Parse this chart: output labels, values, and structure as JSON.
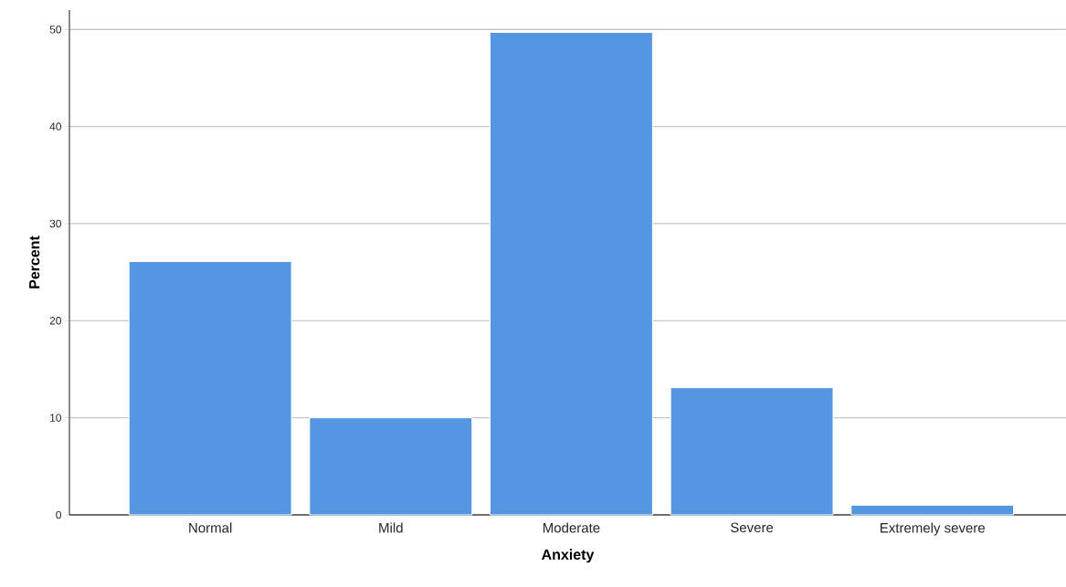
{
  "chart_data": {
    "type": "bar",
    "xlabel": "Anxiety",
    "ylabel": "Percent",
    "categories": [
      "Normal",
      "Mild",
      "Moderate",
      "Severe",
      "Extremely severe"
    ],
    "values": [
      26.1,
      10.0,
      49.7,
      13.1,
      1.0
    ],
    "color": "#5596e3",
    "ylim": [
      0,
      52
    ],
    "yticks": [
      0,
      10,
      20,
      30,
      40,
      50
    ],
    "grid": "y"
  }
}
